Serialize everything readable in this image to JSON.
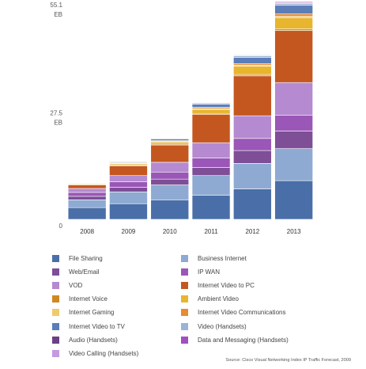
{
  "chart_data": {
    "type": "bar",
    "stacked": true,
    "title": "",
    "xlabel": "",
    "ylabel": "",
    "categories": [
      "2008",
      "2009",
      "2010",
      "2011",
      "2012",
      "2013"
    ],
    "ylim": [
      0,
      55.1
    ],
    "y_tick_labels": [
      {
        "value": 55.1,
        "lines": [
          "55.1",
          "EB"
        ]
      },
      {
        "value": 27.5,
        "lines": [
          "27.5",
          "EB"
        ]
      },
      {
        "value": 0,
        "lines": [
          "0"
        ]
      }
    ],
    "grid": false,
    "legend_placement": "bottom",
    "series": [
      {
        "name": "File Sharing",
        "color": "#4a6fa8",
        "values": [
          3.0,
          4.0,
          5.0,
          6.2,
          7.8,
          9.9
        ]
      },
      {
        "name": "Business Internet",
        "color": "#8eaad2",
        "values": [
          2.0,
          3.0,
          3.8,
          5.0,
          6.5,
          8.2
        ]
      },
      {
        "name": "Web/Email",
        "color": "#7e4e97",
        "values": [
          0.9,
          1.2,
          1.5,
          2.1,
          3.3,
          4.5
        ]
      },
      {
        "name": "IP WAN",
        "color": "#9a57b7",
        "values": [
          1.0,
          1.4,
          1.8,
          2.4,
          3.1,
          4.0
        ]
      },
      {
        "name": "VOD",
        "color": "#b58ad0",
        "values": [
          1.0,
          1.6,
          2.5,
          3.9,
          5.8,
          8.4
        ]
      },
      {
        "name": "Internet Video to PC",
        "color": "#c4571f",
        "values": [
          0.9,
          2.5,
          4.4,
          7.2,
          10.2,
          13.3
        ]
      },
      {
        "name": "Internet Voice",
        "color": "#d08822",
        "values": [
          0.15,
          0.2,
          0.25,
          0.3,
          0.35,
          0.4
        ]
      },
      {
        "name": "Ambient Video",
        "color": "#e8b52e",
        "values": [
          0.2,
          0.3,
          0.5,
          1.0,
          2.1,
          2.9
        ]
      },
      {
        "name": "Internet Gaming",
        "color": "#f0cb6b",
        "values": [
          0.1,
          0.15,
          0.2,
          0.25,
          0.3,
          0.35
        ]
      },
      {
        "name": "Internet Video Communications",
        "color": "#e88b33",
        "values": [
          0.1,
          0.15,
          0.2,
          0.3,
          0.4,
          0.6
        ]
      },
      {
        "name": "Internet Video to TV",
        "color": "#5b7db8",
        "values": [
          0.1,
          0.2,
          0.4,
          0.8,
          1.6,
          2.2
        ]
      },
      {
        "name": "Video (Handsets)",
        "color": "#9bb3d8",
        "values": [
          0.05,
          0.1,
          0.2,
          0.3,
          0.4,
          0.5
        ]
      },
      {
        "name": "Audio (Handsets)",
        "color": "#6b3f86",
        "values": [
          0.02,
          0.04,
          0.06,
          0.08,
          0.1,
          0.15
        ]
      },
      {
        "name": "Data and Messaging (Handsets)",
        "color": "#a24fc1",
        "values": [
          0.03,
          0.05,
          0.07,
          0.1,
          0.15,
          0.25
        ]
      },
      {
        "name": "Video Calling (Handsets)",
        "color": "#c49ae0",
        "values": [
          0.02,
          0.03,
          0.05,
          0.07,
          0.1,
          0.15
        ]
      }
    ],
    "source": "Source: Cisco Visual Networking Index IP Traffic Forecast, 2009"
  },
  "legend": {
    "columns": [
      [
        "File Sharing",
        "Web/Email",
        "VOD",
        "Internet Voice",
        "Internet Gaming",
        "Internet Video to TV",
        "Audio (Handsets)",
        "Video Calling (Handsets)"
      ],
      [
        "Business Internet",
        "IP WAN",
        "Internet Video to PC",
        "Ambient Video",
        "Internet Video Communications",
        "Video (Handsets)",
        "Data and Messaging (Handsets)"
      ]
    ]
  }
}
